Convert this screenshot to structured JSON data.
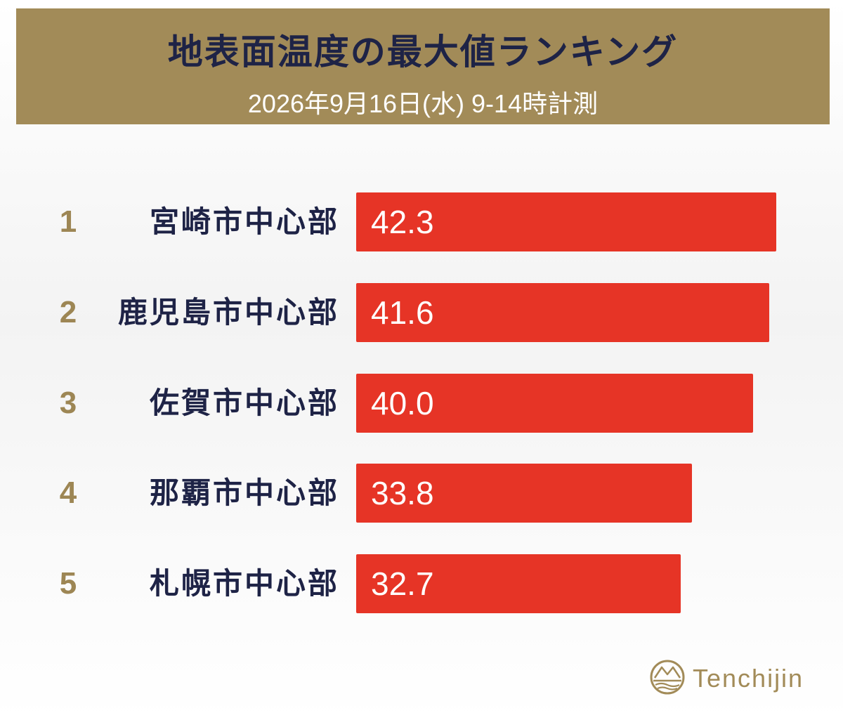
{
  "header": {
    "title": "地表面温度の最大値ランキング",
    "subtitle": "2026年9月16日(水) 9-14時計測"
  },
  "colors": {
    "banner": "#a28b58",
    "title_text": "#1e2346",
    "rank_text": "#9d8654",
    "bar": "#e63426",
    "value_text": "#ffffff",
    "brand": "#a28b58"
  },
  "chart_data": {
    "type": "bar",
    "orientation": "horizontal",
    "categories": [
      "宮崎市中心部",
      "鹿児島市中心部",
      "佐賀市中心部",
      "那覇市中心部",
      "札幌市中心部"
    ],
    "ranks": [
      "1",
      "2",
      "3",
      "4",
      "5"
    ],
    "values": [
      42.3,
      41.6,
      40.0,
      33.8,
      32.7
    ],
    "value_labels": [
      "42.3",
      "41.6",
      "40.0",
      "33.8",
      "32.7"
    ],
    "title": "地表面温度の最大値ランキング",
    "subtitle": "2026年9月16日(水) 9-14時計測",
    "xlim": [
      0,
      42.3
    ],
    "grid": false,
    "legend": "none"
  },
  "footer": {
    "logo_icon": "tenchijin-logo-icon",
    "brand": "Tenchijin"
  }
}
